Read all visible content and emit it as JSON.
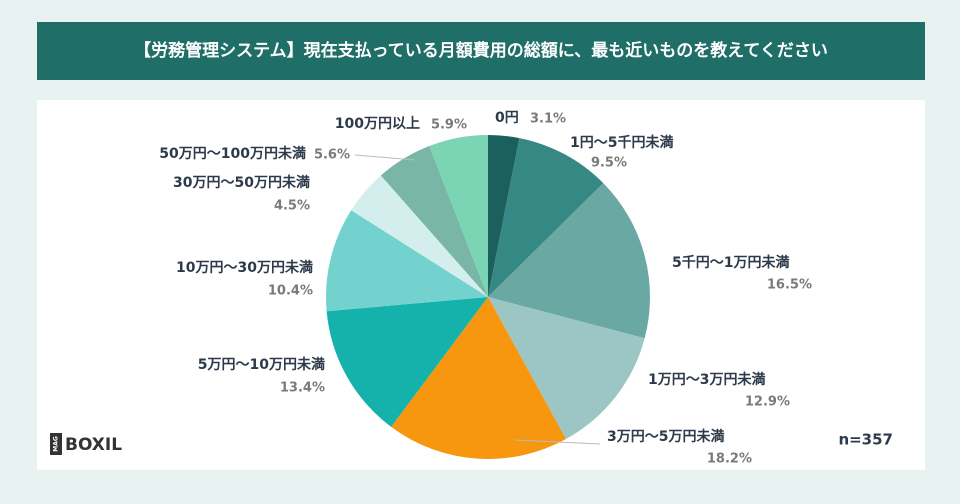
{
  "chart_data": {
    "type": "pie",
    "title": "【労務管理システム】現在支払っている月額費用の総額に、最も近いものを教えてください",
    "categories": [
      "0円",
      "1円～5千円未満",
      "5千円～1万円未満",
      "1万円～3万円未満",
      "3万円～5万円未満",
      "5万円～10万円未満",
      "10万円～30万円未満",
      "30万円～50万円未満",
      "50万円～100万円未満",
      "100万円以上"
    ],
    "values": [
      3.1,
      9.5,
      16.5,
      12.9,
      18.2,
      13.4,
      10.4,
      4.5,
      5.6,
      5.9
    ],
    "value_labels": [
      "3.1%",
      "9.5%",
      "16.5%",
      "12.9%",
      "18.2%",
      "13.4%",
      "10.4%",
      "4.5%",
      "5.6%",
      "5.9%"
    ],
    "colors": [
      "#1b605c",
      "#358883",
      "#6aa8a4",
      "#9cc6c4",
      "#f7960f",
      "#15b2ab",
      "#74d2ce",
      "#d3eeed",
      "#79b6a6",
      "#7bd5b4"
    ],
    "note": "n=357",
    "logo": "BOXIL",
    "logo_badge": "MAG"
  }
}
